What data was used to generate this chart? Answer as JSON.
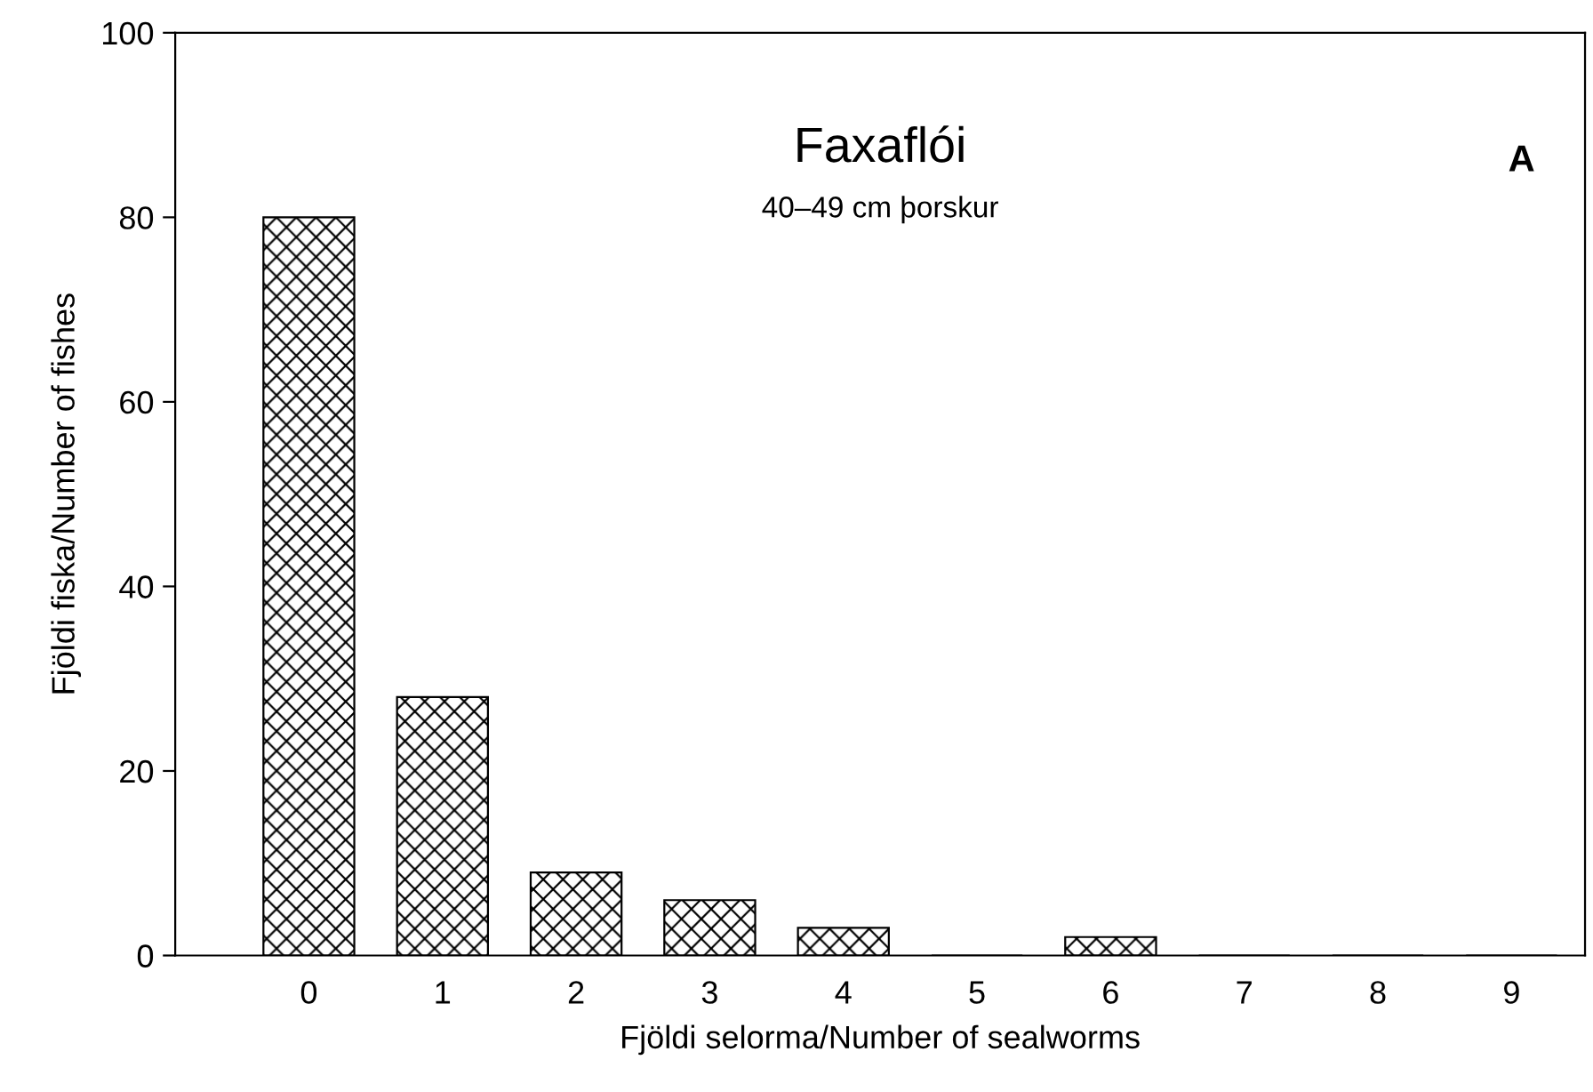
{
  "chart_data": {
    "type": "bar",
    "title": "Faxaflói",
    "subtitle": "40–49 cm þorskur",
    "xlabel": "Fjöldi selorma/Number of sealworms",
    "ylabel": "Fjöldi fiska/Number of fishes",
    "annotations": [
      "A"
    ],
    "categories": [
      "0",
      "1",
      "2",
      "3",
      "4",
      "5",
      "6",
      "7",
      "8",
      "9"
    ],
    "values": [
      80,
      28,
      9,
      6,
      3,
      0,
      2,
      0,
      0,
      0
    ],
    "color": "#000000",
    "ylim": [
      0,
      100
    ],
    "yticks": [
      0,
      20,
      40,
      60,
      80,
      100
    ],
    "grid": false,
    "legend": false
  }
}
